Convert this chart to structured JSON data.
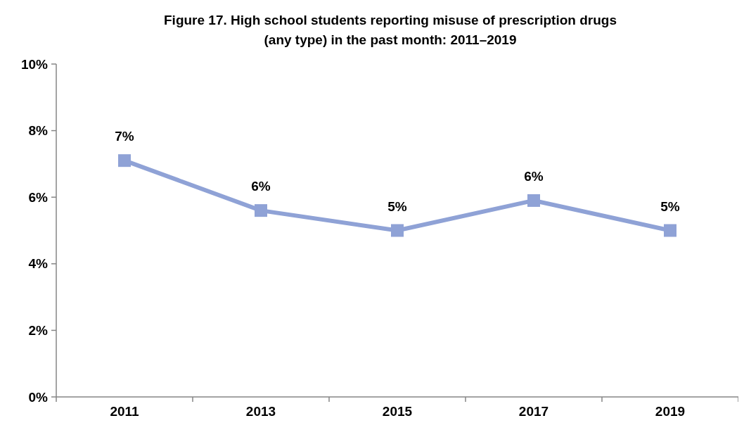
{
  "chart_data": {
    "type": "line",
    "title": "Figure 17. High school students reporting misuse of prescription drugs\n(any type) in the past month: 2011–2019",
    "categories": [
      "2011",
      "2013",
      "2015",
      "2017",
      "2019"
    ],
    "series": [
      {
        "color": "#8fa2d6",
        "values": [
          7.1,
          5.6,
          5.0,
          5.9,
          5.0
        ],
        "value_labels": [
          "7%",
          "6%",
          "5%",
          "6%",
          "5%"
        ]
      }
    ],
    "ylim": [
      0,
      10
    ],
    "yticks": [
      {
        "value": 0,
        "label": "0%"
      },
      {
        "value": 2,
        "label": "2%"
      },
      {
        "value": 4,
        "label": "4%"
      },
      {
        "value": 6,
        "label": "6%"
      },
      {
        "value": 8,
        "label": "8%"
      },
      {
        "value": 10,
        "label": "10%"
      }
    ],
    "marker": "square",
    "line_style": "solid",
    "grid": false
  }
}
